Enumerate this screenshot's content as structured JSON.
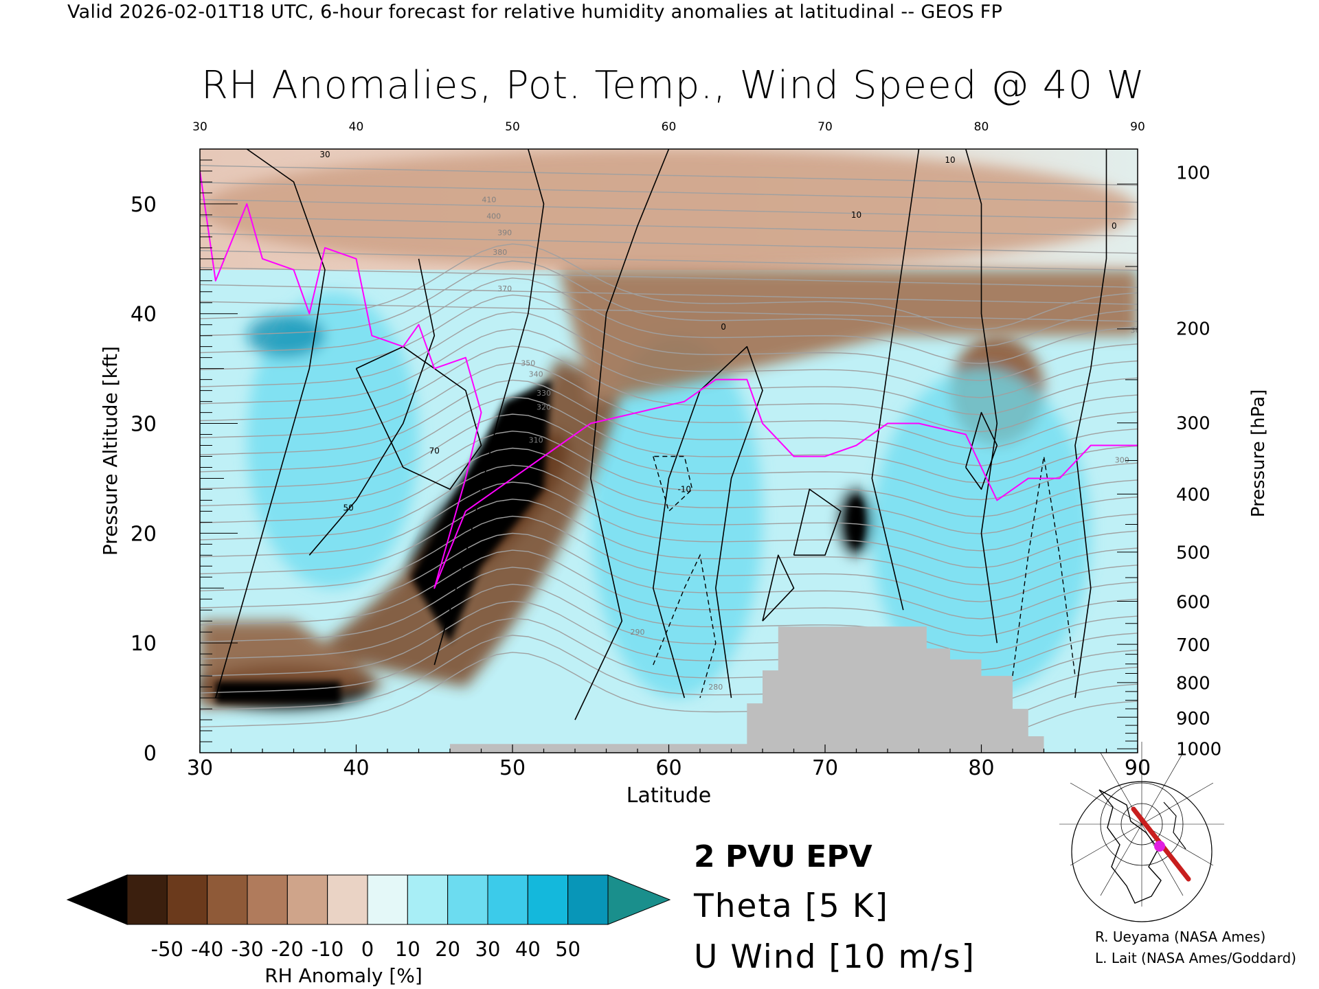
{
  "header": {
    "caption": "Valid 2026-02-01T18 UTC, 6-hour forecast for relative humidity anomalies at latitudinal -- GEOS FP",
    "title": "RH Anomalies, Pot. Temp., Wind Speed @ 40 W"
  },
  "legend": {
    "epv": "2 PVU EPV",
    "theta": "Theta [5 K]",
    "uwind": "U Wind [10 m/s]",
    "colorbar_label": "RH Anomaly [%]"
  },
  "credits": {
    "line1": "R. Ueyama (NASA Ames)",
    "line2": "L. Lait (NASA Ames/Goddard)"
  },
  "colors": {
    "epv_line": "#ff00ff",
    "theta_line": "#a0a0a0",
    "uwind_line": "#000000",
    "terrain": "#bebebe",
    "colorbar": [
      "#000000",
      "#3b1f0e",
      "#6b3a1c",
      "#8f5a38",
      "#b07b5c",
      "#cfa48a",
      "#ead3c5",
      "#e4f8f8",
      "#a8eef6",
      "#6cdcf0",
      "#3ccbea",
      "#14b8dc",
      "#0896b8",
      "#1a8f8c"
    ]
  },
  "chart_data": {
    "type": "heatmap",
    "title": "RH Anomalies, Pot. Temp., Wind Speed @ 40 W",
    "xlabel": "Latitude",
    "ylabel": "Pressure Altitude [kft]",
    "y2label": "Pressure [hPa]",
    "xlim": [
      30,
      90
    ],
    "ylim": [
      0,
      55
    ],
    "x_ticks": [
      "30",
      "40",
      "50",
      "60",
      "70",
      "80",
      "90"
    ],
    "y_ticks": [
      "0",
      "10",
      "20",
      "30",
      "40",
      "50"
    ],
    "y2_ticks": [
      {
        "label": "100",
        "kft": 52.9
      },
      {
        "label": "200",
        "kft": 38.7
      },
      {
        "label": "300",
        "kft": 30.1
      },
      {
        "label": "400",
        "kft": 23.6
      },
      {
        "label": "500",
        "kft": 18.3
      },
      {
        "label": "600",
        "kft": 13.8
      },
      {
        "label": "700",
        "kft": 9.9
      },
      {
        "label": "800",
        "kft": 6.4
      },
      {
        "label": "900",
        "kft": 3.2
      },
      {
        "label": "1000",
        "kft": 0.4
      }
    ],
    "colorbar": {
      "label": "RH Anomaly [%]",
      "levels": [
        -50,
        -40,
        -30,
        -20,
        -10,
        0,
        10,
        20,
        30,
        40,
        50
      ],
      "tick_labels": [
        "-50",
        "-40",
        "-30",
        "-20",
        "-10",
        "0",
        "10",
        "20",
        "30",
        "40",
        "50"
      ]
    },
    "rh_anomaly_regions": [
      {
        "name": "dry band upper troposphere",
        "sign": "dry",
        "lat_range": [
          44,
          53
        ],
        "kft_range": [
          10,
          34
        ],
        "value": -50
      },
      {
        "name": "dry layer low levels",
        "sign": "dry",
        "lat_range": [
          30,
          41
        ],
        "kft_range": [
          4,
          8
        ],
        "value": -50
      },
      {
        "name": "dry pocket",
        "sign": "dry",
        "lat_range": [
          71,
          73
        ],
        "kft_range": [
          18,
          24
        ],
        "value": -50
      },
      {
        "name": "dry stratosphere",
        "sign": "dry",
        "lat_range": [
          30,
          90
        ],
        "kft_range": [
          44,
          55
        ],
        "value": -10
      },
      {
        "name": "dry tropopause fold",
        "sign": "dry",
        "lat_range": [
          78,
          84
        ],
        "kft_range": [
          28,
          38
        ],
        "value": -30
      },
      {
        "name": "moist band",
        "sign": "moist",
        "lat_range": [
          33,
          44
        ],
        "kft_range": [
          15,
          42
        ],
        "value": 30
      },
      {
        "name": "moist band",
        "sign": "moist",
        "lat_range": [
          55,
          66
        ],
        "kft_range": [
          5,
          38
        ],
        "value": 30
      },
      {
        "name": "moist band",
        "sign": "moist",
        "lat_range": [
          73,
          87
        ],
        "kft_range": [
          5,
          35
        ],
        "value": 30
      },
      {
        "name": "moist max",
        "sign": "moist",
        "lat_range": [
          33,
          38
        ],
        "kft_range": [
          36,
          40
        ],
        "value": 50
      }
    ],
    "theta_contour_labels": [
      "410",
      "400",
      "390",
      "380",
      "370",
      "360",
      "350",
      "340",
      "330",
      "320",
      "310",
      "300",
      "290",
      "280"
    ],
    "uwind_contour_labels": [
      "30",
      "50",
      "70",
      "10",
      "0",
      "-10"
    ],
    "epv_2pvu_line": [
      {
        "lat": 30,
        "kft": 53
      },
      {
        "lat": 31,
        "kft": 43
      },
      {
        "lat": 33,
        "kft": 50
      },
      {
        "lat": 34,
        "kft": 45
      },
      {
        "lat": 36,
        "kft": 44
      },
      {
        "lat": 37,
        "kft": 40
      },
      {
        "lat": 38,
        "kft": 46
      },
      {
        "lat": 40,
        "kft": 45
      },
      {
        "lat": 41,
        "kft": 38
      },
      {
        "lat": 43,
        "kft": 37
      },
      {
        "lat": 44,
        "kft": 39
      },
      {
        "lat": 45,
        "kft": 35
      },
      {
        "lat": 47,
        "kft": 36
      },
      {
        "lat": 48,
        "kft": 31
      },
      {
        "lat": 47,
        "kft": 25
      },
      {
        "lat": 46,
        "kft": 20
      },
      {
        "lat": 45,
        "kft": 15
      },
      {
        "lat": 47,
        "kft": 22
      },
      {
        "lat": 49,
        "kft": 24
      },
      {
        "lat": 51,
        "kft": 26
      },
      {
        "lat": 53,
        "kft": 28
      },
      {
        "lat": 55,
        "kft": 30
      },
      {
        "lat": 58,
        "kft": 31
      },
      {
        "lat": 61,
        "kft": 32
      },
      {
        "lat": 63,
        "kft": 34
      },
      {
        "lat": 65,
        "kft": 34
      },
      {
        "lat": 66,
        "kft": 30
      },
      {
        "lat": 68,
        "kft": 27
      },
      {
        "lat": 70,
        "kft": 27
      },
      {
        "lat": 72,
        "kft": 28
      },
      {
        "lat": 74,
        "kft": 30
      },
      {
        "lat": 76,
        "kft": 30
      },
      {
        "lat": 79,
        "kft": 29
      },
      {
        "lat": 80,
        "kft": 26
      },
      {
        "lat": 81,
        "kft": 23
      },
      {
        "lat": 83,
        "kft": 25
      },
      {
        "lat": 85,
        "kft": 25
      },
      {
        "lat": 87,
        "kft": 28
      },
      {
        "lat": 90,
        "kft": 28
      }
    ],
    "terrain_mask": [
      {
        "lat": 46,
        "kft": 0.8
      },
      {
        "lat": 65,
        "kft": 0.8
      },
      {
        "lat": 65,
        "kft": 4.5
      },
      {
        "lat": 66,
        "kft": 4.5
      },
      {
        "lat": 66,
        "kft": 7.5
      },
      {
        "lat": 67,
        "kft": 7.5
      },
      {
        "lat": 67,
        "kft": 11.5
      },
      {
        "lat": 76.5,
        "kft": 11.5
      },
      {
        "lat": 76.5,
        "kft": 9.5
      },
      {
        "lat": 78,
        "kft": 9.5
      },
      {
        "lat": 78,
        "kft": 8.5
      },
      {
        "lat": 80,
        "kft": 8.5
      },
      {
        "lat": 80,
        "kft": 7
      },
      {
        "lat": 82,
        "kft": 7
      },
      {
        "lat": 82,
        "kft": 4
      },
      {
        "lat": 83,
        "kft": 4
      },
      {
        "lat": 83,
        "kft": 1.5
      },
      {
        "lat": 84,
        "kft": 1.5
      },
      {
        "lat": 84,
        "kft": 0
      },
      {
        "lat": 46,
        "kft": 0
      }
    ]
  }
}
